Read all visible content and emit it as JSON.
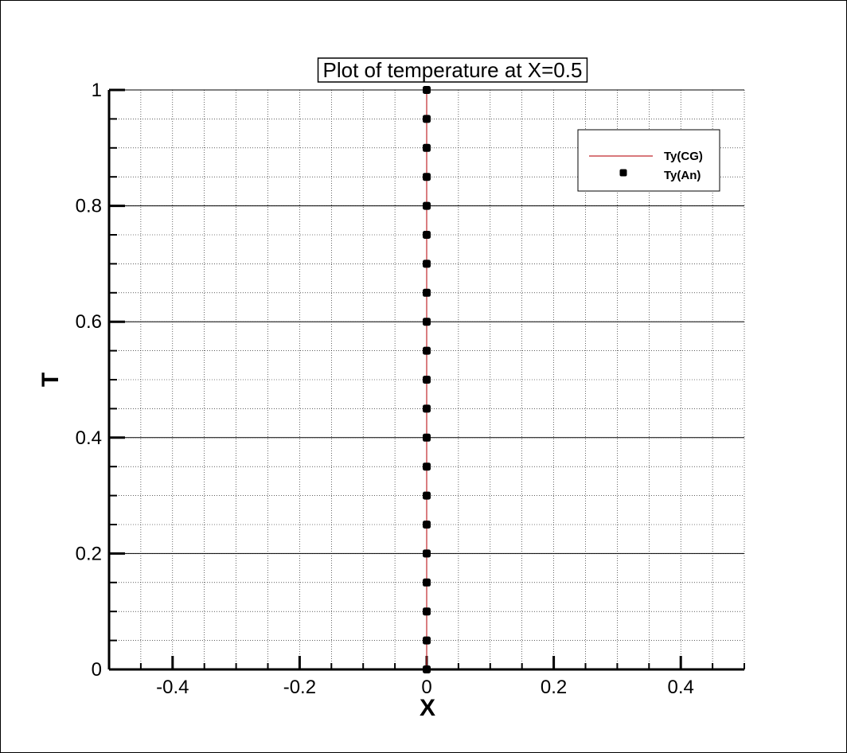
{
  "chart_data": {
    "type": "line",
    "title": "Plot of temperature at X=0.5",
    "xlabel": "X",
    "ylabel": "T",
    "xlim": [
      -0.5,
      0.5
    ],
    "ylim": [
      0,
      1
    ],
    "x_ticks": [
      -0.4,
      -0.2,
      0,
      0.2,
      0.4
    ],
    "x_tick_labels": [
      "-0.4",
      "-0.2",
      "0",
      "0.2",
      "0.4"
    ],
    "y_ticks": [
      0,
      0.2,
      0.4,
      0.6,
      0.8,
      1
    ],
    "y_tick_labels": [
      "0",
      "0.2",
      "0.4",
      "0.6",
      "0.8",
      "1"
    ],
    "grid": true,
    "legend_position": "top-right",
    "series": [
      {
        "name": "Ty(CG)",
        "style": "line",
        "color": "#c0282d",
        "x": [
          0,
          0
        ],
        "y": [
          0,
          1
        ]
      },
      {
        "name": "Ty(An)",
        "style": "markers",
        "color": "#000000",
        "x": [
          0,
          0,
          0,
          0,
          0,
          0,
          0,
          0,
          0,
          0,
          0,
          0,
          0,
          0,
          0,
          0,
          0,
          0,
          0,
          0,
          0
        ],
        "y": [
          0,
          0.05,
          0.1,
          0.15,
          0.2,
          0.25,
          0.3,
          0.35,
          0.4,
          0.45,
          0.5,
          0.55,
          0.6,
          0.65,
          0.7,
          0.75,
          0.8,
          0.85,
          0.9,
          0.95,
          1
        ]
      }
    ]
  }
}
